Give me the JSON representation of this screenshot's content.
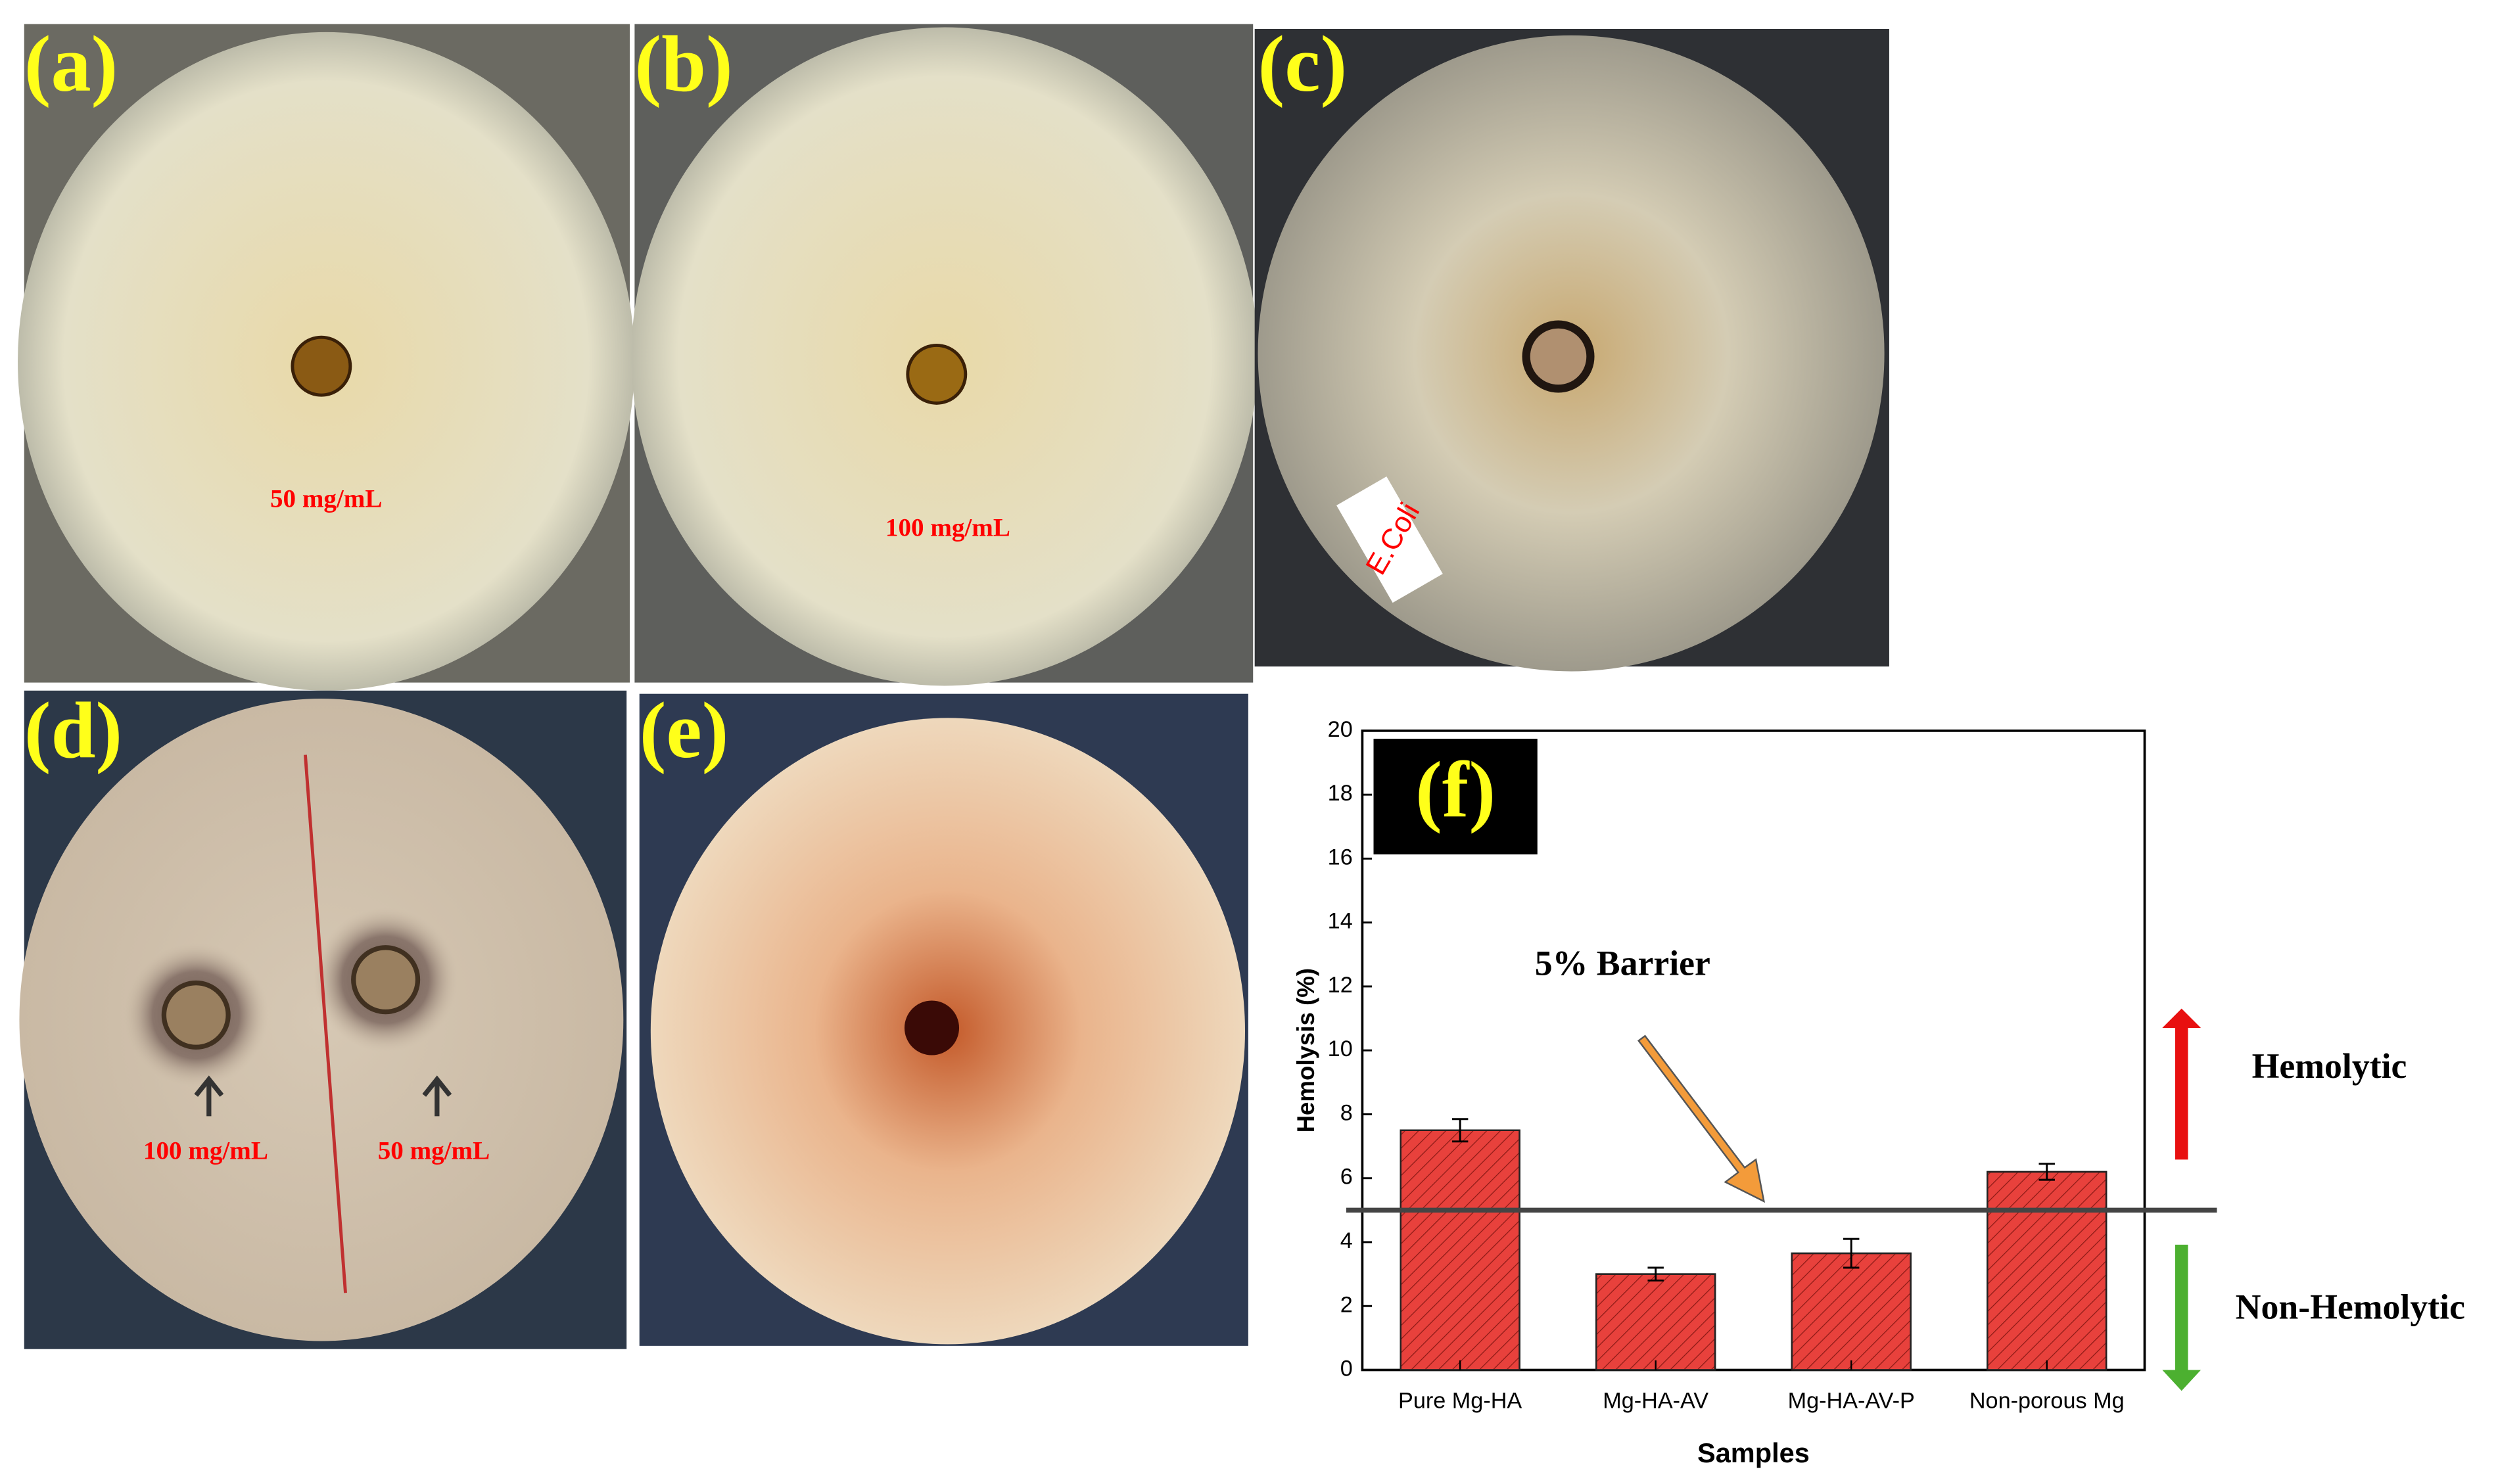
{
  "panels": [
    {
      "label": "(a)",
      "annotations": [
        "50 mg/mL"
      ]
    },
    {
      "label": "(b)",
      "annotations": [
        "100 mg/mL"
      ]
    },
    {
      "label": "(c)",
      "annotations": [
        "E.Coli"
      ]
    },
    {
      "label": "(d)",
      "annotations": [
        "100 mg/mL",
        "50 mg/mL"
      ]
    },
    {
      "label": "(e)",
      "annotations": []
    }
  ],
  "chart_data": {
    "type": "bar",
    "panel_label": "(f)",
    "x_label": "Samples",
    "y_label": "Hemolysis (%)",
    "categories": [
      "Pure Mg-HA",
      "Mg-HA-AV",
      "Mg-HA-AV-P",
      "Non-porous Mg"
    ],
    "values": [
      7.5,
      3.0,
      3.65,
      6.2
    ],
    "errors": [
      0.35,
      0.2,
      0.45,
      0.25
    ],
    "color": "#e8413c",
    "ylim": [
      0,
      20
    ],
    "yticks": [
      0,
      2,
      4,
      6,
      8,
      10,
      12,
      14,
      16,
      18,
      20
    ],
    "threshold": 5,
    "threshold_label": "5% Barrier",
    "upper_label": "Hemolytic",
    "lower_label": "Non-Hemolytic"
  }
}
